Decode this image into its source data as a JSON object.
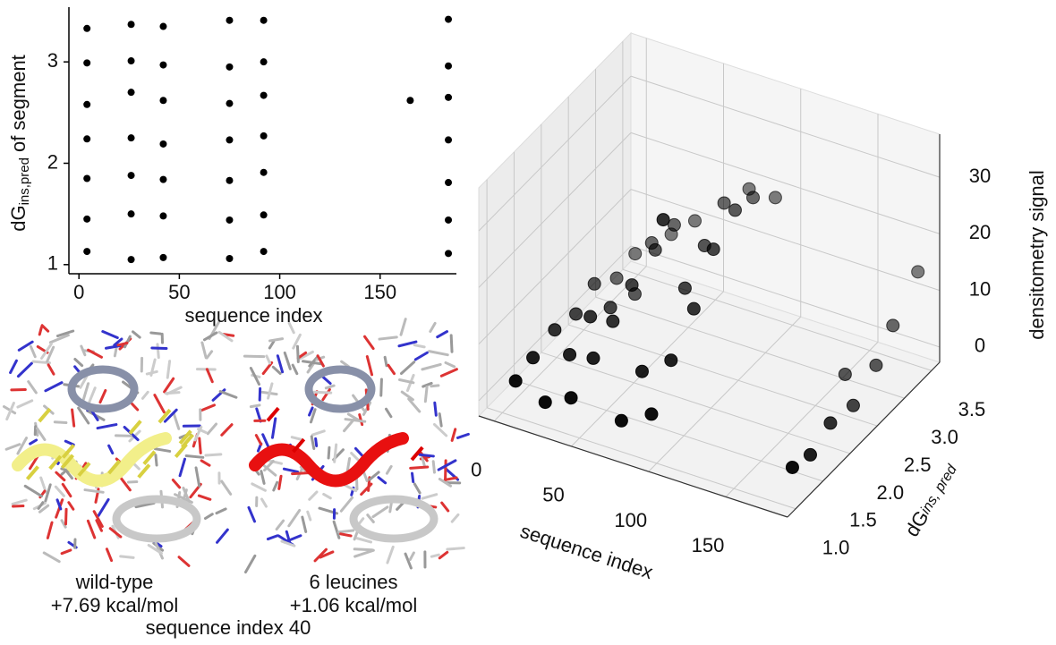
{
  "chart_data": [
    {
      "type": "scatter",
      "xlabel": "sequence index",
      "ylabel": {
        "main": "dG",
        "sub": "ins,pred",
        "rest": "of segment"
      },
      "x": [
        4,
        4,
        4,
        4,
        4,
        4,
        4,
        26,
        26,
        26,
        26,
        26,
        26,
        26,
        42,
        42,
        42,
        42,
        42,
        42,
        42,
        75,
        75,
        75,
        75,
        75,
        75,
        75,
        92,
        92,
        92,
        92,
        92,
        92,
        92,
        165,
        184,
        184,
        184,
        184,
        184,
        184,
        184
      ],
      "y": [
        3.33,
        2.99,
        2.58,
        2.24,
        1.85,
        1.45,
        1.13,
        3.37,
        3.01,
        2.7,
        2.25,
        1.88,
        1.5,
        1.05,
        3.35,
        2.97,
        2.62,
        2.19,
        1.84,
        1.48,
        1.07,
        3.41,
        2.95,
        2.59,
        2.23,
        1.83,
        1.44,
        1.06,
        3.41,
        3.0,
        2.67,
        2.27,
        1.91,
        1.49,
        1.13,
        2.62,
        3.42,
        2.96,
        2.65,
        2.23,
        1.81,
        1.44,
        1.11
      ],
      "color": "#000000",
      "xlim": [
        -5,
        188
      ],
      "ylim": [
        0.91,
        3.54
      ],
      "xticks": [
        0,
        50,
        100,
        150
      ],
      "yticks": [
        1,
        2,
        3
      ]
    },
    {
      "type": "scatter3d",
      "xlabel": "sequence index",
      "ylabel": {
        "main": "dG",
        "sub": "ins, pred"
      },
      "zlabel": "densitometry signal",
      "x": [
        4,
        4,
        4,
        4,
        4,
        4,
        4,
        26,
        26,
        26,
        26,
        26,
        26,
        26,
        42,
        42,
        42,
        42,
        42,
        42,
        42,
        75,
        75,
        75,
        75,
        75,
        75,
        75,
        92,
        92,
        92,
        92,
        92,
        92,
        92,
        165,
        184,
        184,
        184,
        184,
        184,
        184,
        184
      ],
      "y": [
        1.13,
        1.45,
        1.85,
        2.24,
        2.58,
        2.99,
        3.33,
        1.05,
        1.5,
        1.88,
        2.25,
        2.7,
        3.01,
        3.37,
        1.07,
        1.48,
        1.84,
        2.19,
        2.62,
        2.97,
        3.35,
        1.06,
        1.44,
        1.83,
        2.23,
        2.59,
        2.95,
        3.41,
        1.13,
        1.49,
        1.91,
        2.27,
        2.67,
        3.0,
        3.41,
        2.62,
        1.11,
        1.44,
        1.81,
        2.23,
        2.65,
        2.96,
        3.42
      ],
      "z": [
        2,
        3,
        4,
        3,
        5,
        2,
        3,
        1,
        5,
        8,
        6,
        4,
        10,
        8,
        3,
        6,
        9,
        12,
        14,
        15,
        12,
        2,
        7,
        30,
        14,
        18,
        22,
        20,
        4,
        10,
        15,
        22,
        25,
        24,
        20,
        3,
        3,
        2,
        4,
        3,
        6,
        10,
        15
      ],
      "color": "#000000",
      "xlim": [
        -10,
        190
      ],
      "ylim": [
        0.85,
        3.65
      ],
      "zlim": [
        -2.7,
        37.6
      ],
      "xticks": [
        0,
        50,
        100,
        150
      ],
      "yticks": [
        {
          "value": 1,
          "label": "1.0"
        },
        1.5,
        {
          "value": 2,
          "label": "2.0"
        },
        2.5,
        {
          "value": 3,
          "label": "3.0"
        },
        3.5
      ],
      "zticks": [
        0,
        10,
        20,
        30
      ]
    }
  ],
  "structures": {
    "left": {
      "name": "wild-type",
      "energy": "+7.69 kcal/mol"
    },
    "right": {
      "name": "6 leucines",
      "energy": "+1.06 kcal/mol"
    },
    "caption": "sequence index 40"
  }
}
